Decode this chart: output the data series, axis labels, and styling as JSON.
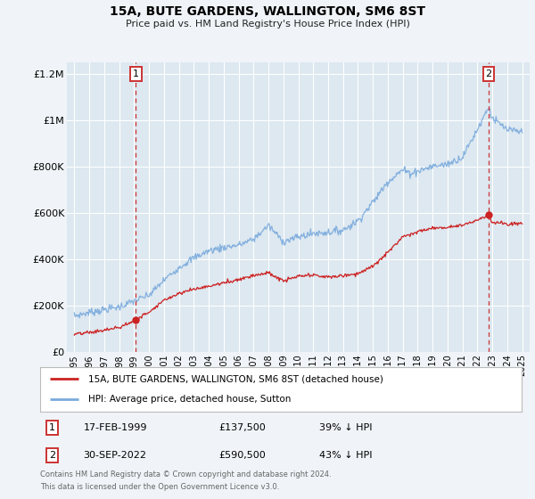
{
  "title": "15A, BUTE GARDENS, WALLINGTON, SM6 8ST",
  "subtitle": "Price paid vs. HM Land Registry's House Price Index (HPI)",
  "bg_color": "#f0f4f8",
  "plot_bg_color": "#dde8f0",
  "grid_color": "#ffffff",
  "hpi_color": "#7aaadd",
  "price_color": "#cc2222",
  "vline_color": "#cc3333",
  "ann1_x": 1999.12,
  "ann2_x": 2022.748,
  "ann1_y": 137500,
  "ann2_y": 590500,
  "annotation_1": {
    "label": "1",
    "date": "17-FEB-1999",
    "price": "£137,500",
    "pct": "39% ↓ HPI"
  },
  "annotation_2": {
    "label": "2",
    "date": "30-SEP-2022",
    "price": "£590,500",
    "pct": "43% ↓ HPI"
  },
  "legend_prop_label": "15A, BUTE GARDENS, WALLINGTON, SM6 8ST (detached house)",
  "legend_hpi_label": "HPI: Average price, detached house, Sutton",
  "footer_1": "Contains HM Land Registry data © Crown copyright and database right 2024.",
  "footer_2": "This data is licensed under the Open Government Licence v3.0.",
  "ylim": [
    0,
    1250000
  ],
  "xlim": [
    1994.5,
    2025.5
  ],
  "yticks": [
    0,
    200000,
    400000,
    600000,
    800000,
    1000000,
    1200000
  ],
  "ytick_labels": [
    "£0",
    "£200K",
    "£400K",
    "£600K",
    "£800K",
    "£1M",
    "£1.2M"
  ],
  "xticks": [
    1995,
    1996,
    1997,
    1998,
    1999,
    2000,
    2001,
    2002,
    2003,
    2004,
    2005,
    2006,
    2007,
    2008,
    2009,
    2010,
    2011,
    2012,
    2013,
    2014,
    2015,
    2016,
    2017,
    2018,
    2019,
    2020,
    2021,
    2022,
    2023,
    2024,
    2025
  ]
}
